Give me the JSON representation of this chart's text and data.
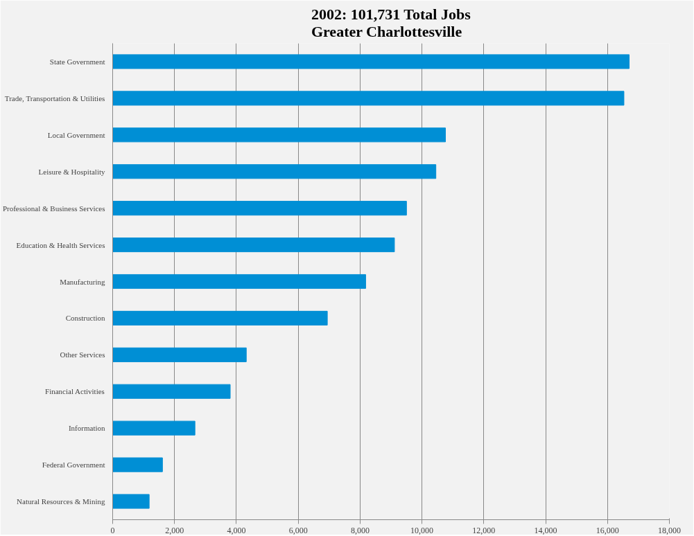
{
  "chart_data": {
    "type": "bar",
    "orientation": "horizontal",
    "title": "2002: 101,731 Total Jobs\nGreater Charlottesville",
    "categories": [
      "State Government",
      "Trade, Transportation & Utilities",
      "Local Government",
      "Leisure & Hospitality",
      "Professional & Business Services",
      "Education & Health Services",
      "Manufacturing",
      "Construction",
      "Other Services",
      "Financial Activities",
      "Information",
      "Federal Government",
      "Natural Resources & Mining"
    ],
    "values": [
      16700,
      16530,
      10760,
      10450,
      9500,
      9110,
      8180,
      6940,
      4320,
      3800,
      2660,
      1610,
      1180
    ],
    "color": "#008fd5",
    "xlim": [
      0,
      18000
    ],
    "xticks": [
      {
        "value": 0,
        "label": "0"
      },
      {
        "value": 2000,
        "label": "2,000"
      },
      {
        "value": 4000,
        "label": "4,000"
      },
      {
        "value": 6000,
        "label": "6,000"
      },
      {
        "value": 8000,
        "label": "8,000"
      },
      {
        "value": 10000,
        "label": "10,000"
      },
      {
        "value": 12000,
        "label": "12,000"
      },
      {
        "value": 14000,
        "label": "14,000"
      },
      {
        "value": 16000,
        "label": "16,000"
      },
      {
        "value": 18000,
        "label": "18,000"
      }
    ],
    "grid": "x"
  }
}
